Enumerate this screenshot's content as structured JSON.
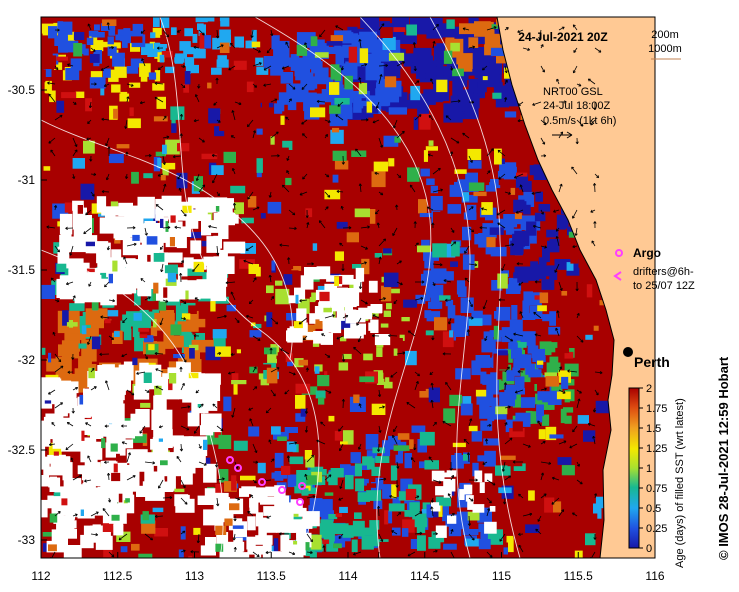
{
  "map": {
    "title": "24-Jul-2021 20Z",
    "depth_legend": [
      "200m",
      "1000m"
    ],
    "current_info": [
      "NRT00 GSL",
      "24-Jul 18:00Z",
      "0.5m/s (1kt 6h)"
    ],
    "lon_ticks": [
      "112",
      "112.5",
      "113",
      "113.5",
      "114",
      "114.5",
      "115",
      "115.5",
      "116"
    ],
    "lat_ticks": [
      "-30.5",
      "-31",
      "-31.5",
      "-32",
      "-32.5",
      "-33"
    ],
    "city": "Perth",
    "legend_argo": "Argo",
    "legend_drifters": [
      "drifters@6h-",
      "to 25/07 12Z"
    ],
    "credit": "© IMOS 28-Jul-2021 12:59 Hobart",
    "colorbar": {
      "label": "Age (days) of filled SST (wrt latest)",
      "ticks": [
        "2",
        "1.75",
        "1.5",
        "1.25",
        "1",
        "0.75",
        "0.5",
        "0.25",
        "0"
      ]
    },
    "colors": {
      "land": "#ffc994",
      "dark_red": "#a80000",
      "red": "#d01010",
      "orange": "#dd6a10",
      "yellow": "#f4e800",
      "light_green": "#a8e030",
      "green": "#2fb04a",
      "teal": "#18b890",
      "light_blue": "#20a8f0",
      "blue": "#2050e0",
      "navy": "#1818a8",
      "argo": "#ff40ff"
    }
  }
}
